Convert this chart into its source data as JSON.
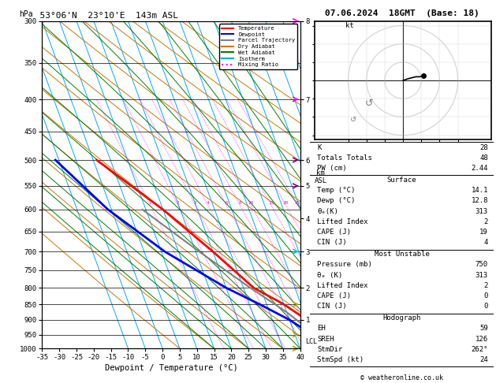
{
  "title_left": "53°06'N  23°10'E  143m ASL",
  "title_right": "07.06.2024  18GMT  (Base: 18)",
  "label_hpa": "hPa",
  "label_km_asl": "km\nASL",
  "xlabel": "Dewpoint / Temperature (°C)",
  "pressure_levels": [
    300,
    350,
    400,
    450,
    500,
    550,
    600,
    650,
    700,
    750,
    800,
    850,
    900,
    950,
    1000
  ],
  "xmin": -35,
  "xmax": 40,
  "skew_factor": 35,
  "temp_profile_x": [
    14.1,
    12.0,
    10.0,
    5.0,
    -2.0,
    -10.0,
    -20.0,
    -34.0
  ],
  "temp_profile_p": [
    1000,
    950,
    900,
    850,
    800,
    700,
    600,
    500
  ],
  "dewp_profile_x": [
    12.8,
    10.0,
    5.0,
    -2.0,
    -10.0,
    -24.0,
    -36.0,
    -46.0
  ],
  "dewp_profile_p": [
    1000,
    950,
    900,
    850,
    800,
    700,
    600,
    500
  ],
  "parcel_profile_x": [
    14.1,
    13.0,
    11.5,
    9.0,
    5.0,
    -3.0,
    -14.0,
    -26.0
  ],
  "parcel_profile_p": [
    1000,
    975,
    950,
    925,
    875,
    800,
    700,
    600
  ],
  "temp_color": "#ff0000",
  "dewp_color": "#0000ff",
  "parcel_color": "#808080",
  "dry_adiabat_color": "#cc7700",
  "wet_adiabat_color": "#008000",
  "isotherm_color": "#00aaff",
  "mixing_ratio_color": "#ff00ff",
  "legend_entries": [
    "Temperature",
    "Dewpoint",
    "Parcel Trajectory",
    "Dry Adiabat",
    "Wet Adiabat",
    "Isotherm",
    "Mixing Ratio"
  ],
  "legend_colors": [
    "#ff0000",
    "#0000ff",
    "#808080",
    "#cc7700",
    "#008000",
    "#00aaff",
    "#ff00ff"
  ],
  "legend_styles": [
    "-",
    "-",
    "-",
    "-",
    "-",
    "-",
    ":"
  ],
  "mixing_ratio_values": [
    1,
    2,
    3,
    4,
    6,
    8,
    10,
    15,
    20,
    25
  ],
  "km_ticks": {
    "8": 300,
    "7": 400,
    "6": 500,
    "5": 550,
    "4": 620,
    "3": 700,
    "2": 800,
    "1": 900
  },
  "wind_barbs": [
    {
      "p": 300,
      "color": "#ff00ff",
      "u": 15,
      "v": 5
    },
    {
      "p": 350,
      "color": "#ff00ff",
      "u": 12,
      "v": 3
    },
    {
      "p": 400,
      "color": "#ff00ff",
      "u": 10,
      "v": 2
    },
    {
      "p": 500,
      "color": "#800080",
      "u": 8,
      "v": 1
    },
    {
      "p": 550,
      "color": "#800080",
      "u": 6,
      "v": 0
    },
    {
      "p": 700,
      "color": "#00cccc",
      "u": 4,
      "v": -1
    },
    {
      "p": 850,
      "color": "#aaaa00",
      "u": 3,
      "v": -2
    },
    {
      "p": 950,
      "color": "#aaaa00",
      "u": 2,
      "v": -1
    },
    {
      "p": 1000,
      "color": "#aaaa00",
      "u": 2,
      "v": 0
    }
  ],
  "lcl_pressure": 975,
  "stats": {
    "K": "28",
    "Totals Totals": "48",
    "PW (cm)": "2.44",
    "surf_temp": "14.1",
    "surf_dewp": "12.8",
    "surf_theta_e": "313",
    "surf_li": "2",
    "surf_cape": "19",
    "surf_cin": "4",
    "mu_press": "750",
    "mu_theta_e": "313",
    "mu_li": "2",
    "mu_cape": "0",
    "mu_cin": "0",
    "hodo_eh": "59",
    "hodo_sreh": "126",
    "hodo_stmdir": "262°",
    "hodo_stmspd": "24"
  },
  "copyright": "© weatheronline.co.uk",
  "hodo_wind_u": [
    0,
    3,
    6,
    10,
    14,
    18,
    22
  ],
  "hodo_wind_v": [
    0,
    1,
    2,
    3,
    4,
    4,
    5
  ]
}
